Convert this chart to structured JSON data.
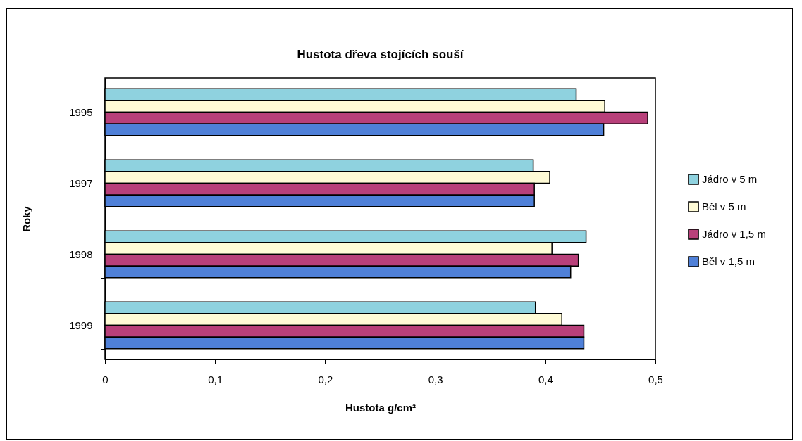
{
  "chart_data": {
    "type": "bar",
    "orientation": "horizontal",
    "title": "Hustota dřeva stojících souší",
    "xlabel": "Hustota g/cm²",
    "ylabel": "Roky",
    "categories": [
      "1995",
      "1997",
      "1998",
      "1999"
    ],
    "series": [
      {
        "name": "Jádro v 5 m",
        "color": "#8fd2df",
        "values": [
          0.428,
          0.389,
          0.437,
          0.391
        ]
      },
      {
        "name": "Běl v 5 m",
        "color": "#fffbd6",
        "values": [
          0.454,
          0.404,
          0.406,
          0.415
        ]
      },
      {
        "name": "Jádro v 1,5 m",
        "color": "#b8407a",
        "values": [
          0.493,
          0.39,
          0.43,
          0.435
        ]
      },
      {
        "name": "Běl v 1,5 m",
        "color": "#4f80d8",
        "values": [
          0.453,
          0.39,
          0.423,
          0.435
        ]
      }
    ],
    "xlim": [
      0,
      0.5
    ],
    "xticks": [
      0,
      {
        "value": 0.1,
        "label": "0,1"
      },
      {
        "value": 0.2,
        "label": "0,2"
      },
      {
        "value": 0.3,
        "label": "0,3"
      },
      {
        "value": 0.4,
        "label": "0,4"
      },
      {
        "value": 0.5,
        "label": "0,5"
      }
    ],
    "legend": "right"
  }
}
